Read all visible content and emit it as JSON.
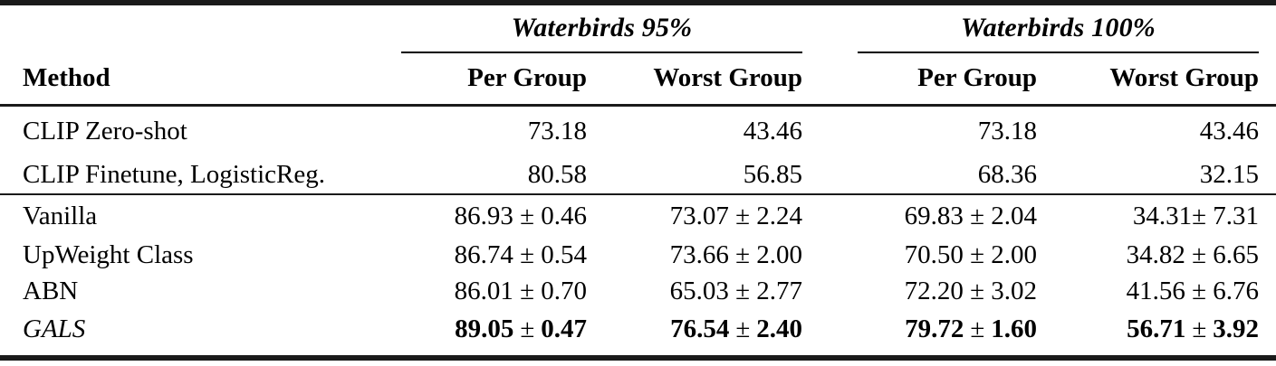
{
  "table": {
    "pm": "±",
    "group_headers": [
      {
        "label": "Waterbirds 95%"
      },
      {
        "label": "Waterbirds 100%"
      }
    ],
    "method_header": "Method",
    "column_headers": [
      "Per Group",
      "Worst Group",
      "Per Group",
      "Worst Group"
    ],
    "rows_block1": [
      {
        "method": "CLIP Zero-shot",
        "values": [
          "73.18",
          "43.46",
          "73.18",
          "43.46"
        ]
      },
      {
        "method": "CLIP Finetune, LogisticReg.",
        "values": [
          "80.58",
          "56.85",
          "68.36",
          "32.15"
        ]
      }
    ],
    "rows_block2": [
      {
        "method": "Vanilla",
        "values": [
          "86.93 ± 0.46",
          "73.07 ± 2.24",
          "69.83 ± 2.04",
          "34.31± 7.31"
        ]
      },
      {
        "method": "UpWeight Class",
        "values": [
          "86.74 ± 0.54",
          "73.66 ± 2.00",
          "70.50 ± 2.00",
          "34.82 ± 6.65"
        ]
      },
      {
        "method": "ABN",
        "values": [
          "86.01 ± 0.70",
          "65.03 ± 2.77",
          "72.20 ± 3.02",
          "41.56 ± 6.76"
        ]
      }
    ],
    "row_gals": {
      "method": "GALS",
      "values": [
        {
          "mean": "89.05",
          "std": "0.47"
        },
        {
          "mean": "76.54",
          "std": "2.40"
        },
        {
          "mean": "79.72",
          "std": "1.60"
        },
        {
          "mean": "56.71",
          "std": "3.92"
        }
      ]
    }
  }
}
